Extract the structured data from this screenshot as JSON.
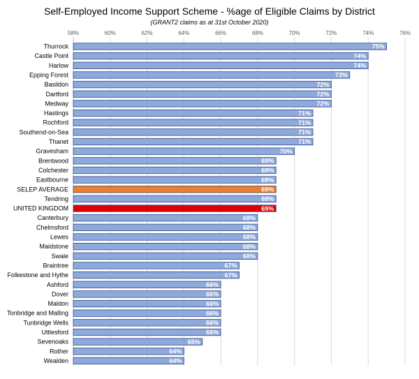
{
  "chart_data": {
    "type": "bar",
    "orientation": "horizontal",
    "title": "Self-Employed Income Support Scheme - %age of Eligible Claims by District",
    "subtitle": "(GRANT2 claims as at 31st October 2020)",
    "xlim": [
      58,
      76
    ],
    "x_ticks": [
      58,
      60,
      62,
      64,
      66,
      68,
      70,
      72,
      74,
      76
    ],
    "x_tick_suffix": "%",
    "grid": true,
    "legend": "none",
    "colors": {
      "default": "#8ea9db",
      "highlight_average": "#ed7d31",
      "highlight_uk": "#e00000",
      "bar_border": "#2f4b8a",
      "grid": "#d9d9d9"
    },
    "categories": [
      "Thurrock",
      "Castle Point",
      "Harlow",
      "Epping Forest",
      "Basildon",
      "Dartford",
      "Medway",
      "Hastings",
      "Rochford",
      "Southend-on-Sea",
      "Thanet",
      "Gravesham",
      "Brentwood",
      "Colchester",
      "Eastbourne",
      "SELEP AVERAGE",
      "Tendring",
      "UNITED KINGDOM",
      "Canterbury",
      "Chelmsford",
      "Lewes",
      "Maidstone",
      "Swale",
      "Braintree",
      "Folkestone and Hythe",
      "Ashford",
      "Dover",
      "Maldon",
      "Tonbridge and Malling",
      "Tunbridge Wells",
      "Uttlesford",
      "Sevenoaks",
      "Rother",
      "Wealden"
    ],
    "values": [
      75,
      74,
      74,
      73,
      72,
      72,
      72,
      71,
      71,
      71,
      71,
      70,
      69,
      69,
      69,
      69,
      69,
      69,
      68,
      68,
      68,
      68,
      68,
      67,
      67,
      66,
      66,
      66,
      66,
      66,
      66,
      65,
      64,
      64
    ],
    "data_labels": [
      "75%",
      "74%",
      "74%",
      "73%",
      "72%",
      "72%",
      "72%",
      "71%",
      "71%",
      "71%",
      "71%",
      "70%",
      "69%",
      "69%",
      "69%",
      "69%",
      "69%",
      "69%",
      "68%",
      "68%",
      "68%",
      "68%",
      "68%",
      "67%",
      "67%",
      "66%",
      "66%",
      "66%",
      "66%",
      "66%",
      "66%",
      "65%",
      "64%",
      "64%"
    ],
    "highlights": {
      "SELEP AVERAGE": "highlight_average",
      "UNITED KINGDOM": "highlight_uk"
    }
  }
}
